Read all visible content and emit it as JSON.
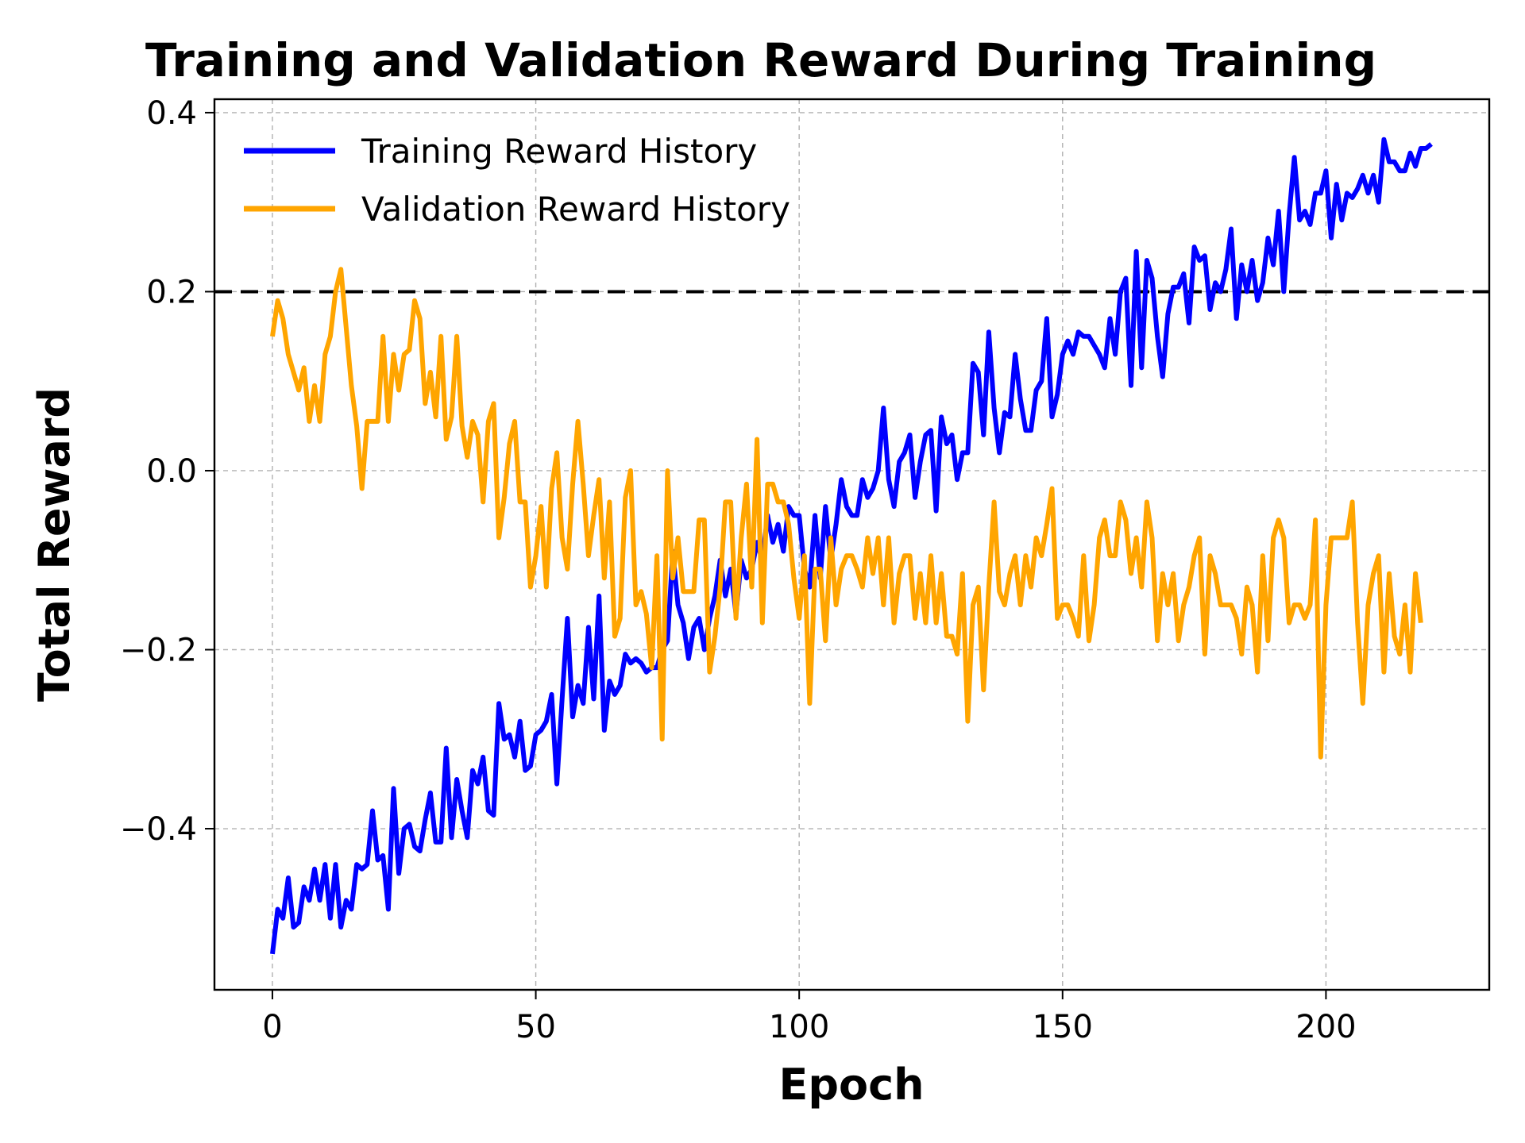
{
  "chart_data": {
    "type": "line",
    "title": "Training and Validation Reward During Training",
    "xlabel": "Epoch",
    "ylabel": "Total Reward",
    "xlim": [
      -11,
      231
    ],
    "ylim": [
      -0.58,
      0.415
    ],
    "xticks": [
      0,
      50,
      100,
      150,
      200
    ],
    "yticks": [
      -0.4,
      -0.2,
      0.0,
      0.2,
      0.4
    ],
    "xtick_labels": [
      "0",
      "50",
      "100",
      "150",
      "200"
    ],
    "ytick_labels": [
      "−0.4",
      "−0.2",
      "0.0",
      "0.2",
      "0.4"
    ],
    "grid": true,
    "legend_position": "upper-left",
    "threshold": {
      "y": 0.2,
      "style": "dashed",
      "color": "#000000"
    },
    "series": [
      {
        "name": "Training Reward History",
        "color": "#0000ff",
        "x_start": 0,
        "x_step": 1,
        "values": [
          -0.54,
          -0.49,
          -0.5,
          -0.455,
          -0.51,
          -0.505,
          -0.465,
          -0.48,
          -0.445,
          -0.48,
          -0.44,
          -0.5,
          -0.44,
          -0.51,
          -0.48,
          -0.49,
          -0.44,
          -0.445,
          -0.44,
          -0.38,
          -0.435,
          -0.43,
          -0.49,
          -0.355,
          -0.45,
          -0.4,
          -0.395,
          -0.42,
          -0.425,
          -0.39,
          -0.36,
          -0.415,
          -0.415,
          -0.31,
          -0.41,
          -0.345,
          -0.38,
          -0.41,
          -0.335,
          -0.35,
          -0.32,
          -0.38,
          -0.385,
          -0.26,
          -0.3,
          -0.295,
          -0.32,
          -0.28,
          -0.335,
          -0.33,
          -0.295,
          -0.29,
          -0.28,
          -0.25,
          -0.35,
          -0.255,
          -0.165,
          -0.275,
          -0.24,
          -0.26,
          -0.175,
          -0.255,
          -0.14,
          -0.29,
          -0.235,
          -0.25,
          -0.24,
          -0.205,
          -0.215,
          -0.21,
          -0.215,
          -0.225,
          -0.22,
          -0.22,
          -0.2,
          -0.19,
          -0.09,
          -0.15,
          -0.17,
          -0.21,
          -0.175,
          -0.165,
          -0.2,
          -0.165,
          -0.14,
          -0.1,
          -0.14,
          -0.11,
          -0.16,
          -0.1,
          -0.12,
          -0.11,
          -0.08,
          -0.1,
          -0.05,
          -0.08,
          -0.06,
          -0.09,
          -0.04,
          -0.05,
          -0.05,
          -0.11,
          -0.13,
          -0.05,
          -0.12,
          -0.04,
          -0.1,
          -0.06,
          -0.01,
          -0.04,
          -0.05,
          -0.05,
          -0.01,
          -0.03,
          -0.02,
          0.0,
          0.07,
          -0.01,
          -0.04,
          0.01,
          0.02,
          0.04,
          -0.03,
          0.01,
          0.04,
          0.045,
          -0.045,
          0.06,
          0.03,
          0.04,
          -0.01,
          0.02,
          0.02,
          0.12,
          0.11,
          0.04,
          0.155,
          0.07,
          0.02,
          0.065,
          0.06,
          0.13,
          0.08,
          0.045,
          0.045,
          0.09,
          0.1,
          0.17,
          0.06,
          0.085,
          0.13,
          0.145,
          0.13,
          0.155,
          0.15,
          0.15,
          0.14,
          0.13,
          0.115,
          0.17,
          0.13,
          0.2,
          0.215,
          0.095,
          0.245,
          0.115,
          0.235,
          0.215,
          0.15,
          0.105,
          0.175,
          0.205,
          0.205,
          0.22,
          0.165,
          0.25,
          0.235,
          0.24,
          0.18,
          0.21,
          0.2,
          0.225,
          0.27,
          0.17,
          0.23,
          0.2,
          0.235,
          0.19,
          0.21,
          0.26,
          0.23,
          0.29,
          0.2,
          0.285,
          0.35,
          0.28,
          0.29,
          0.275,
          0.31,
          0.31,
          0.335,
          0.26,
          0.32,
          0.28,
          0.31,
          0.305,
          0.315,
          0.33,
          0.31,
          0.33,
          0.3,
          0.37,
          0.345,
          0.345,
          0.335,
          0.335,
          0.355,
          0.34,
          0.36,
          0.36,
          0.365
        ]
      },
      {
        "name": "Validation Reward History",
        "color": "#ffa500",
        "x_start": 0,
        "x_step": 1,
        "values": [
          0.15,
          0.19,
          0.17,
          0.13,
          0.11,
          0.09,
          0.115,
          0.055,
          0.095,
          0.055,
          0.13,
          0.15,
          0.2,
          0.225,
          0.16,
          0.095,
          0.05,
          -0.02,
          0.055,
          0.055,
          0.055,
          0.15,
          0.055,
          0.13,
          0.09,
          0.13,
          0.135,
          0.19,
          0.17,
          0.075,
          0.11,
          0.06,
          0.15,
          0.035,
          0.06,
          0.15,
          0.05,
          0.015,
          0.055,
          0.04,
          -0.035,
          0.055,
          0.075,
          -0.075,
          -0.03,
          0.03,
          0.055,
          -0.035,
          -0.035,
          -0.13,
          -0.095,
          -0.04,
          -0.13,
          -0.02,
          0.02,
          -0.075,
          -0.11,
          -0.015,
          0.055,
          -0.015,
          -0.095,
          -0.05,
          -0.01,
          -0.12,
          -0.035,
          -0.185,
          -0.165,
          -0.03,
          0.0,
          -0.15,
          -0.135,
          -0.16,
          -0.22,
          -0.095,
          -0.3,
          0.0,
          -0.12,
          -0.075,
          -0.135,
          -0.135,
          -0.135,
          -0.055,
          -0.055,
          -0.225,
          -0.185,
          -0.13,
          -0.035,
          -0.035,
          -0.165,
          -0.075,
          -0.015,
          -0.13,
          0.035,
          -0.17,
          -0.015,
          -0.015,
          -0.035,
          -0.035,
          -0.06,
          -0.12,
          -0.165,
          -0.095,
          -0.26,
          -0.11,
          -0.11,
          -0.19,
          -0.075,
          -0.15,
          -0.11,
          -0.095,
          -0.095,
          -0.11,
          -0.13,
          -0.075,
          -0.115,
          -0.075,
          -0.15,
          -0.075,
          -0.17,
          -0.115,
          -0.095,
          -0.095,
          -0.165,
          -0.115,
          -0.17,
          -0.095,
          -0.17,
          -0.115,
          -0.185,
          -0.185,
          -0.205,
          -0.115,
          -0.28,
          -0.15,
          -0.13,
          -0.245,
          -0.13,
          -0.035,
          -0.135,
          -0.15,
          -0.115,
          -0.095,
          -0.15,
          -0.095,
          -0.13,
          -0.075,
          -0.095,
          -0.06,
          -0.02,
          -0.165,
          -0.15,
          -0.15,
          -0.165,
          -0.185,
          -0.095,
          -0.19,
          -0.15,
          -0.075,
          -0.055,
          -0.095,
          -0.095,
          -0.035,
          -0.055,
          -0.115,
          -0.075,
          -0.13,
          -0.035,
          -0.075,
          -0.19,
          -0.115,
          -0.15,
          -0.115,
          -0.19,
          -0.15,
          -0.13,
          -0.095,
          -0.075,
          -0.205,
          -0.095,
          -0.115,
          -0.15,
          -0.15,
          -0.15,
          -0.165,
          -0.205,
          -0.13,
          -0.15,
          -0.225,
          -0.095,
          -0.19,
          -0.075,
          -0.055,
          -0.075,
          -0.17,
          -0.15,
          -0.15,
          -0.165,
          -0.15,
          -0.055,
          -0.32,
          -0.15,
          -0.075,
          -0.075,
          -0.075,
          -0.075,
          -0.035,
          -0.17,
          -0.26,
          -0.15,
          -0.115,
          -0.095,
          -0.225,
          -0.115,
          -0.185,
          -0.205,
          -0.15,
          -0.225,
          -0.115,
          -0.17
        ]
      }
    ]
  }
}
